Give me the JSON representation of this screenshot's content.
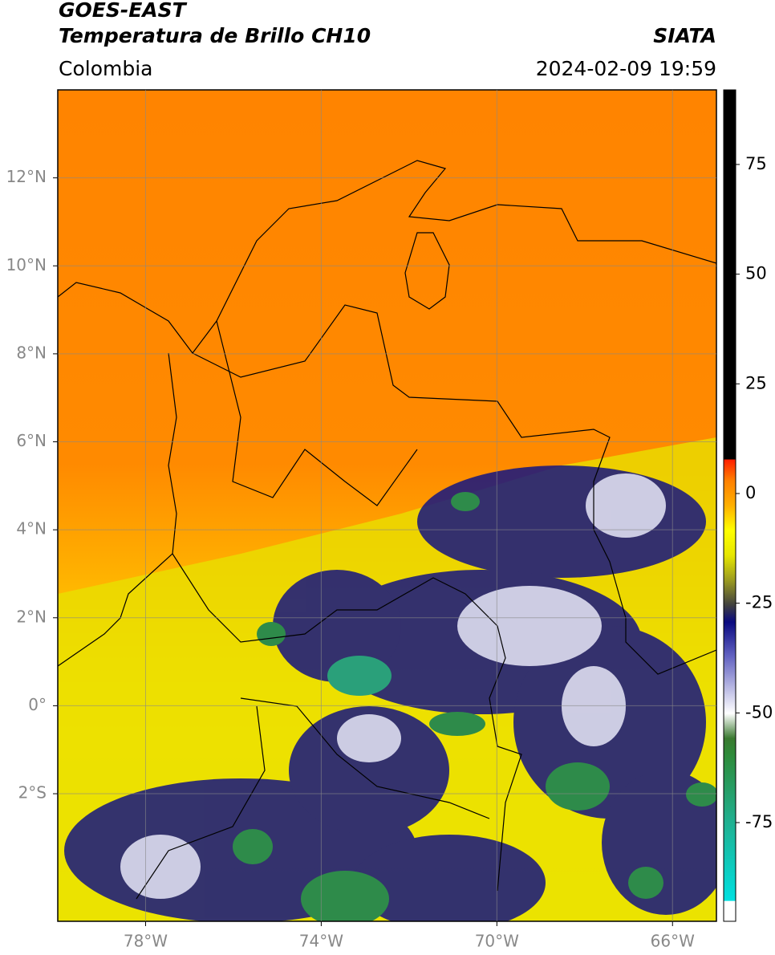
{
  "header": {
    "satellite": "GOES-EAST",
    "product": "Temperatura de Brillo CH10",
    "source": "SIATA",
    "region": "Colombia",
    "datetime": "2024-02-09 19:59"
  },
  "map": {
    "lonlim": [
      -80,
      -65
    ],
    "latlim": [
      -4.9,
      14
    ],
    "lonticks": [
      {
        "value": -78,
        "label": "78°W"
      },
      {
        "value": -74,
        "label": "74°W"
      },
      {
        "value": -70,
        "label": "70°W"
      },
      {
        "value": -66,
        "label": "66°W"
      }
    ],
    "latticks": [
      {
        "value": 12,
        "label": "12°N"
      },
      {
        "value": 10,
        "label": "10°N"
      },
      {
        "value": 8,
        "label": "8°N"
      },
      {
        "value": 6,
        "label": "6°N"
      },
      {
        "value": 4,
        "label": "4°N"
      },
      {
        "value": 2,
        "label": "2°N"
      },
      {
        "value": 0,
        "label": "0°"
      },
      {
        "value": -2,
        "label": "2°S"
      }
    ],
    "grid": true
  },
  "colorbar": {
    "lim": [
      -97.5,
      92
    ],
    "ticks": [
      75,
      50,
      25,
      0,
      -25,
      -50,
      -75
    ]
  }
}
